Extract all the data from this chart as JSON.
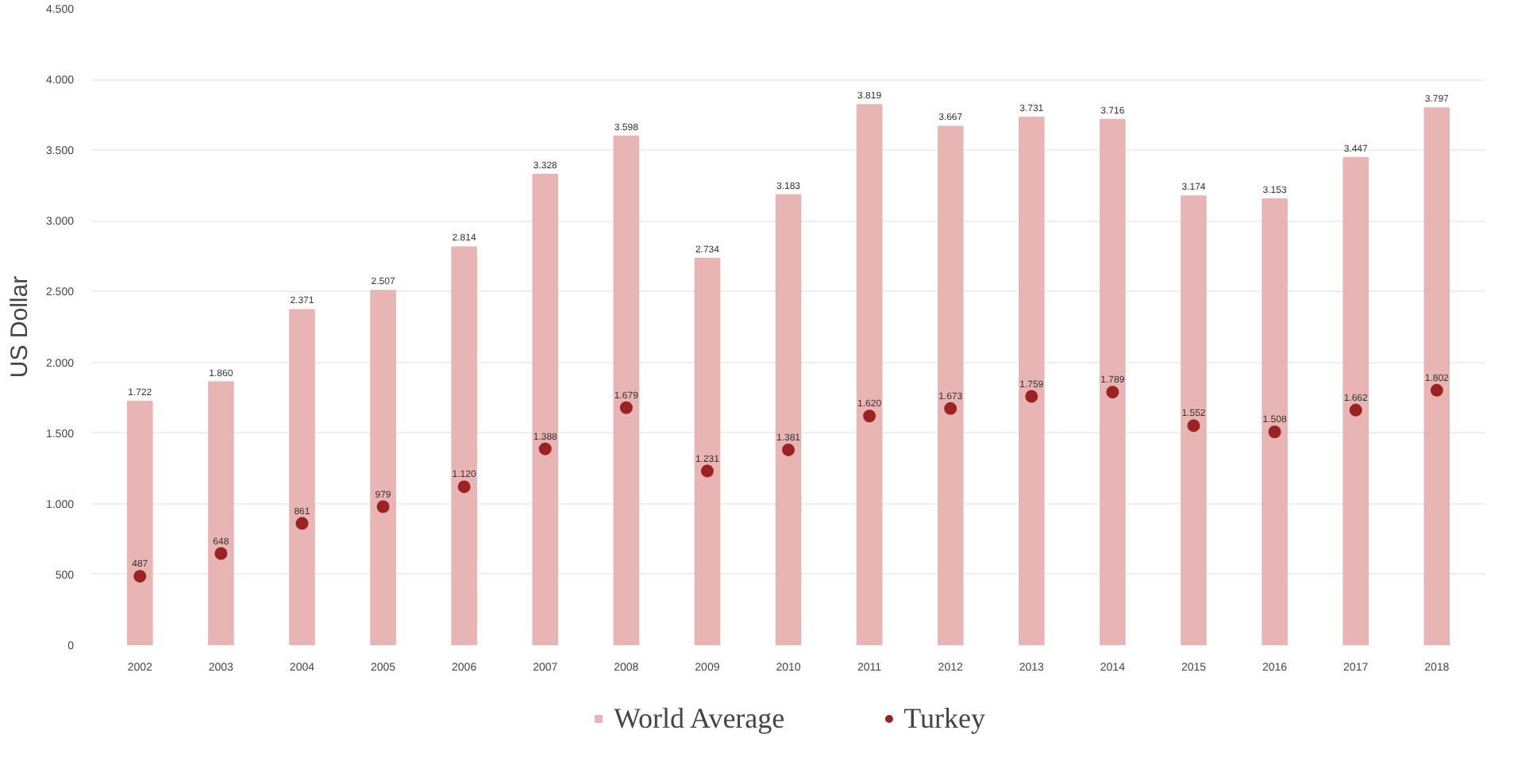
{
  "chart_data": {
    "type": "bar",
    "ylabel": "US Dollar",
    "categories": [
      "2002",
      "2003",
      "2004",
      "2005",
      "2006",
      "2007",
      "2008",
      "2009",
      "2010",
      "2011",
      "2012",
      "2013",
      "2014",
      "2015",
      "2016",
      "2017",
      "2018"
    ],
    "series": [
      {
        "name": "World Average",
        "color": "#e8b4b4",
        "values": [
          1722,
          1860,
          2371,
          2507,
          2814,
          3328,
          3598,
          2734,
          3183,
          3819,
          3667,
          3731,
          3716,
          3174,
          3153,
          3447,
          3797
        ],
        "value_labels": [
          "1.722",
          "1.860",
          "2.371",
          "2.507",
          "2.814",
          "3.328",
          "3.598",
          "2.734",
          "3.183",
          "3.819",
          "3.667",
          "3.731",
          "3.716",
          "3.174",
          "3.153",
          "3.447",
          "3.797"
        ]
      },
      {
        "name": "Turkey",
        "type": "scatter",
        "marker": "circle",
        "color": "#9b2323",
        "values": [
          487,
          648,
          861,
          979,
          1120,
          1388,
          1679,
          1231,
          1381,
          1620,
          1673,
          1759,
          1789,
          1552,
          1508,
          1662,
          1802
        ],
        "value_labels": [
          "487",
          "648",
          "861",
          "979",
          "1.120",
          "1.388",
          "1.679",
          "1.231",
          "1.381",
          "1.620",
          "1.673",
          "1.759",
          "1.789",
          "1.552",
          "1.508",
          "1.662",
          "1.802"
        ]
      }
    ],
    "ylim": [
      0,
      4500
    ],
    "yticks": [
      0,
      500,
      {
        "value": 1000,
        "label": "1.000"
      },
      {
        "value": 1500,
        "label": "1.500"
      },
      {
        "value": 2000,
        "label": "2.000"
      },
      {
        "value": 2500,
        "label": "2.500"
      },
      {
        "value": 3000,
        "label": "3.000"
      },
      {
        "value": 3500,
        "label": "3.500"
      },
      {
        "value": 4000,
        "label": "4.000"
      },
      {
        "value": 4500,
        "label": "4.500"
      }
    ],
    "grid": "y",
    "legend": "bottom"
  }
}
